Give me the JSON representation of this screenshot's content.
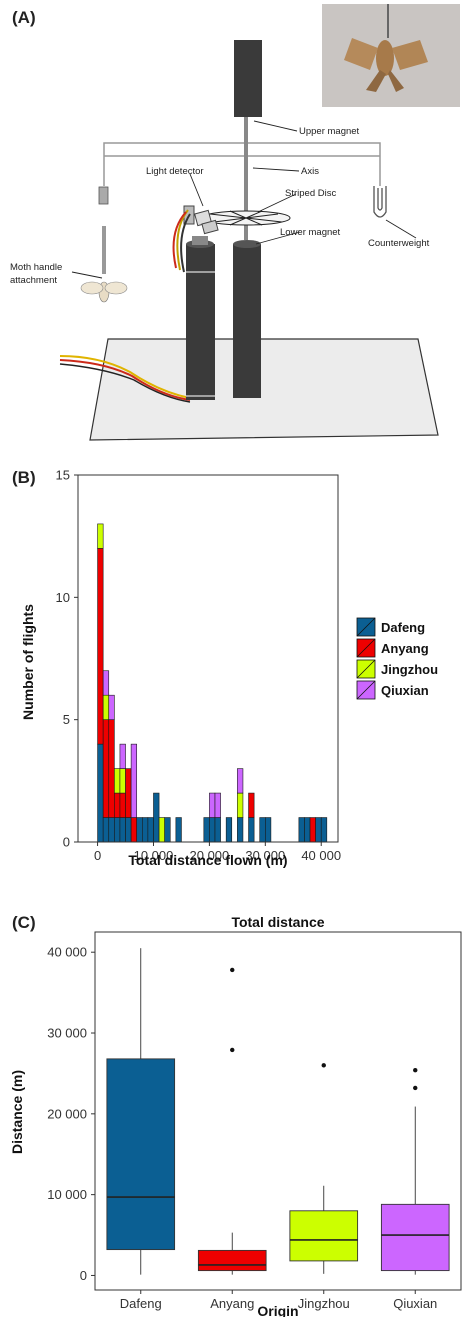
{
  "panels": {
    "a_label": "(A)",
    "b_label": "(B)",
    "c_label": "(C)"
  },
  "apparatus": {
    "labels": {
      "upper_magnet": "Upper magnet",
      "axis": "Axis",
      "light_detector": "Light detector",
      "striped_disc": "Striped Disc",
      "lower_magnet": "Lower magnet",
      "counterweight": "Counterweight",
      "moth_handle_line1": "Moth handle",
      "moth_handle_line2": "attachment"
    }
  },
  "colors": {
    "Dafeng": "#0b5f93",
    "Anyang": "#ee0000",
    "Jingzhou": "#ccff00",
    "Qiuxian": "#cc66ff"
  },
  "chart_data": [
    {
      "type": "bar",
      "stacked": true,
      "title": "",
      "xlabel": "Total distance flown (m)",
      "ylabel": "Number of flights",
      "xlim": [
        -3500,
        43000
      ],
      "ylim": [
        0,
        15
      ],
      "x_ticks": [
        0,
        10000,
        20000,
        30000,
        40000
      ],
      "x_tick_labels": [
        "0",
        "10 000",
        "20 000",
        "30 000",
        "40 000"
      ],
      "y_ticks": [
        0,
        5,
        10,
        15
      ],
      "y_tick_labels": [
        "0",
        "5",
        "10",
        "15"
      ],
      "bin_width": 1000,
      "bins": [
        0,
        1000,
        2000,
        3000,
        4000,
        5000,
        6000,
        7000,
        8000,
        9000,
        10000,
        11000,
        12000,
        13000,
        14000,
        15000,
        16000,
        17000,
        18000,
        19000,
        20000,
        21000,
        22000,
        23000,
        24000,
        25000,
        26000,
        27000,
        28000,
        29000,
        30000,
        31000,
        32000,
        33000,
        34000,
        35000,
        36000,
        37000,
        38000,
        39000,
        40000,
        41000
      ],
      "series": [
        {
          "name": "Dafeng",
          "values": [
            4,
            1,
            1,
            1,
            1,
            1,
            0,
            1,
            1,
            1,
            2,
            0,
            1,
            0,
            1,
            0,
            0,
            0,
            0,
            1,
            1,
            1,
            0,
            1,
            0,
            1,
            0,
            1,
            0,
            1,
            1,
            0,
            0,
            0,
            0,
            0,
            1,
            1,
            0,
            1,
            1,
            0
          ]
        },
        {
          "name": "Anyang",
          "values": [
            8,
            4,
            4,
            1,
            1,
            2,
            1,
            0,
            0,
            0,
            0,
            0,
            0,
            0,
            0,
            0,
            0,
            0,
            0,
            0,
            0,
            0,
            0,
            0,
            0,
            0,
            0,
            1,
            0,
            0,
            0,
            0,
            0,
            0,
            0,
            0,
            0,
            0,
            1,
            0,
            0,
            0
          ]
        },
        {
          "name": "Jingzhou",
          "values": [
            1,
            1,
            0,
            1,
            1,
            0,
            0,
            0,
            0,
            0,
            0,
            1,
            0,
            0,
            0,
            0,
            0,
            0,
            0,
            0,
            0,
            0,
            0,
            0,
            0,
            1,
            0,
            0,
            0,
            0,
            0,
            0,
            0,
            0,
            0,
            0,
            0,
            0,
            0,
            0,
            0,
            0
          ]
        },
        {
          "name": "Qiuxian",
          "values": [
            0,
            1,
            1,
            0,
            1,
            0,
            3,
            0,
            0,
            0,
            0,
            0,
            0,
            0,
            0,
            0,
            0,
            0,
            0,
            0,
            1,
            1,
            0,
            0,
            0,
            1,
            0,
            0,
            0,
            0,
            0,
            0,
            0,
            0,
            0,
            0,
            0,
            0,
            0,
            0,
            0,
            0
          ]
        }
      ],
      "legend": [
        "Dafeng",
        "Anyang",
        "Jingzhou",
        "Qiuxian"
      ],
      "legend_position": "right"
    },
    {
      "type": "box",
      "title": "Total distance",
      "xlabel": "Origin",
      "ylabel": "Distance (m)",
      "ylim": [
        -1800,
        42500
      ],
      "y_ticks": [
        0,
        10000,
        20000,
        30000,
        40000
      ],
      "y_tick_labels": [
        "0",
        "10 000",
        "20 000",
        "30 000",
        "40 000"
      ],
      "categories": [
        "Dafeng",
        "Anyang",
        "Jingzhou",
        "Qiuxian"
      ],
      "boxes": [
        {
          "name": "Dafeng",
          "min": 100,
          "q1": 3200,
          "median": 9700,
          "q3": 26800,
          "max": 40500,
          "outliers": []
        },
        {
          "name": "Anyang",
          "min": 100,
          "q1": 600,
          "median": 1300,
          "q3": 3100,
          "max": 5300,
          "outliers": [
            27900,
            37800
          ]
        },
        {
          "name": "Jingzhou",
          "min": 200,
          "q1": 1800,
          "median": 4400,
          "q3": 8000,
          "max": 11100,
          "outliers": [
            26000
          ]
        },
        {
          "name": "Qiuxian",
          "min": 100,
          "q1": 600,
          "median": 5000,
          "q3": 8800,
          "max": 20900,
          "outliers": [
            23200,
            25400
          ]
        }
      ]
    }
  ]
}
